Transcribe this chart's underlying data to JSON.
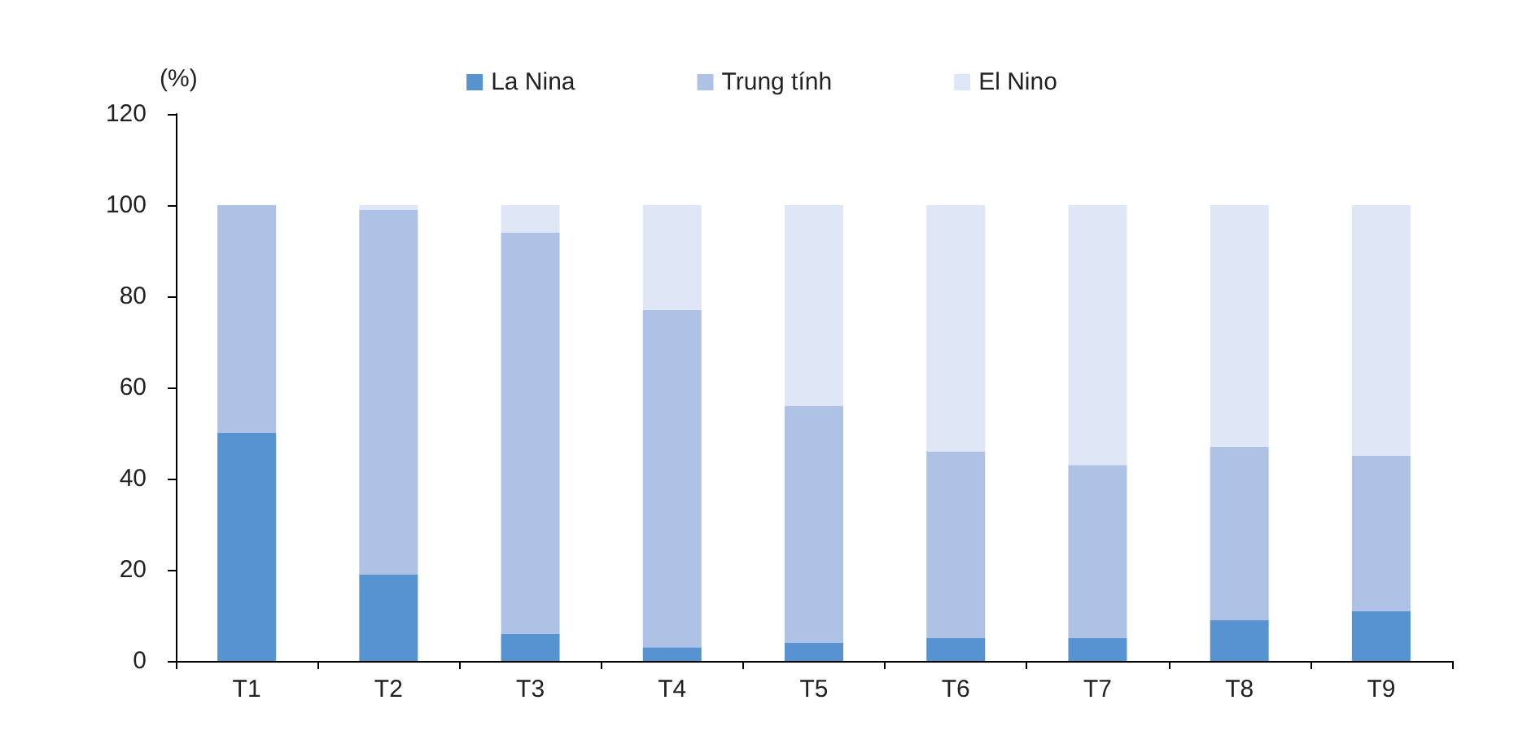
{
  "chart_data": {
    "type": "bar",
    "stacked": true,
    "ylabel": "(%)",
    "categories": [
      "T1",
      "T2",
      "T3",
      "T4",
      "T5",
      "T6",
      "T7",
      "T8",
      "T9"
    ],
    "series": [
      {
        "name": "La Nina",
        "color": "#5793d0",
        "values": [
          50,
          19,
          6,
          3,
          4,
          5,
          5,
          9,
          11
        ]
      },
      {
        "name": "Trung tính",
        "color": "#adc2e5",
        "values": [
          50,
          80,
          88,
          74,
          52,
          41,
          38,
          38,
          34
        ]
      },
      {
        "name": "El Nino",
        "color": "#dfe6f6",
        "values": [
          0,
          1,
          6,
          23,
          44,
          54,
          57,
          53,
          55
        ]
      }
    ],
    "ylim": [
      0,
      120
    ],
    "yticks": [
      0,
      20,
      40,
      60,
      80,
      100,
      120
    ],
    "grid": false,
    "legend": "top"
  }
}
